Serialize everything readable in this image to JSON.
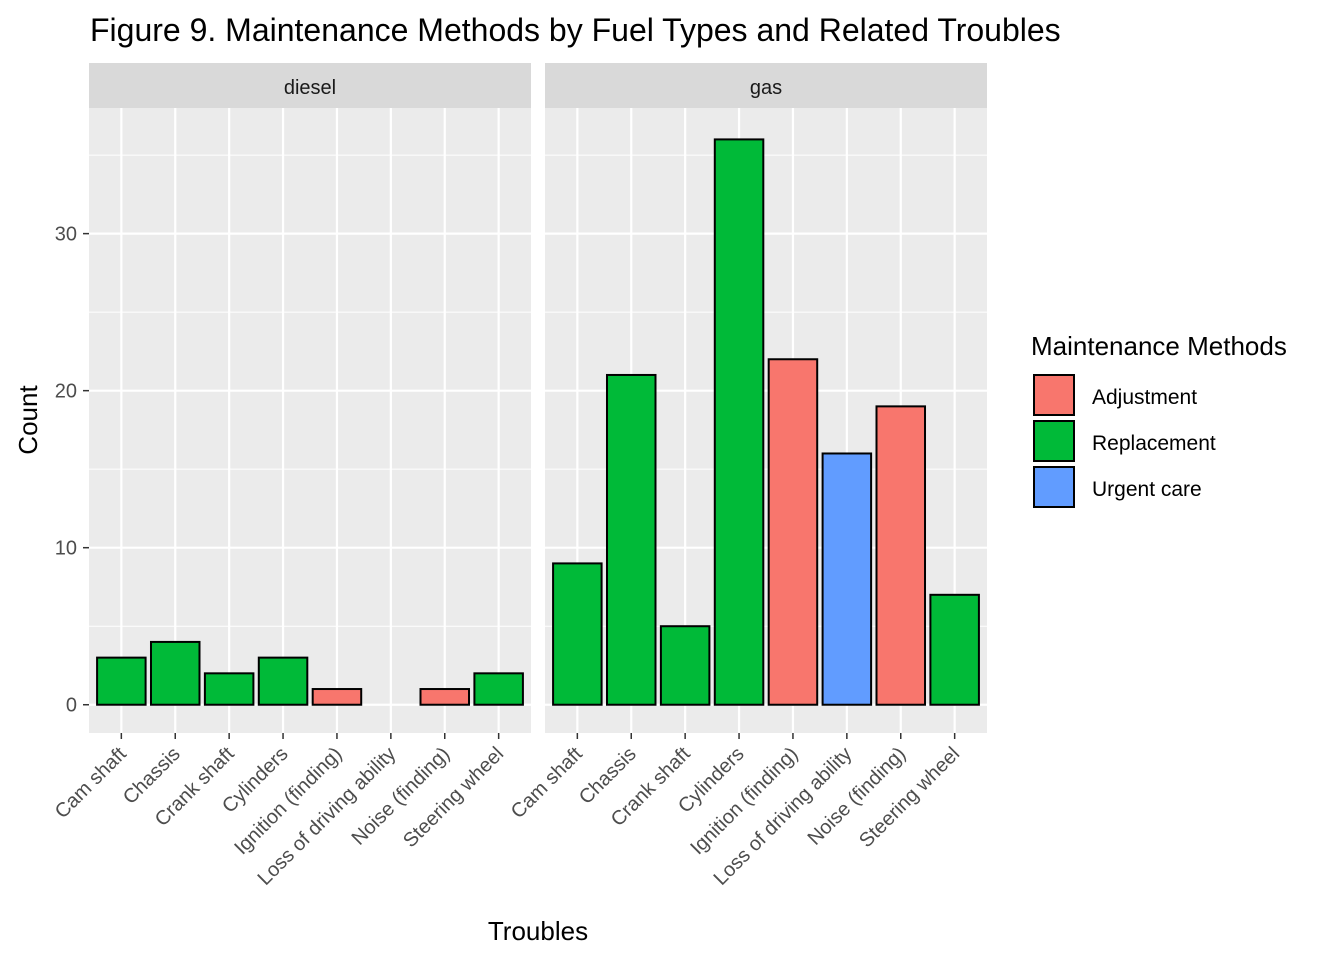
{
  "chart_data": {
    "type": "bar",
    "title": "Figure 9. Maintenance Methods by Fuel Types and Related Troubles",
    "xlabel": "Troubles",
    "ylabel": "Count",
    "ylim": [
      0,
      38
    ],
    "yticks": [
      "0",
      "10",
      "20",
      "30"
    ],
    "grid": true,
    "categories": [
      "Cam shaft",
      "Chassis",
      "Crank shaft",
      "Cylinders",
      "Ignition (finding)",
      "Loss of driving ability",
      "Noise (finding)",
      "Steering wheel"
    ],
    "legend": {
      "title": "Maintenance Methods",
      "placement": "right",
      "entries": [
        {
          "label": "Adjustment",
          "color": "#F8766D"
        },
        {
          "label": "Replacement",
          "color": "#00BA38"
        },
        {
          "label": "Urgent care",
          "color": "#619CFF"
        }
      ]
    },
    "panels": [
      {
        "name": "diesel",
        "values": [
          3,
          4,
          2,
          3,
          1,
          null,
          1,
          2
        ],
        "methods": [
          "Replacement",
          "Replacement",
          "Replacement",
          "Replacement",
          "Adjustment",
          null,
          "Adjustment",
          "Replacement"
        ]
      },
      {
        "name": "gas",
        "values": [
          9,
          21,
          5,
          36,
          22,
          16,
          19,
          7
        ],
        "methods": [
          "Replacement",
          "Replacement",
          "Replacement",
          "Replacement",
          "Adjustment",
          "Urgent care",
          "Adjustment",
          "Replacement"
        ]
      }
    ]
  }
}
